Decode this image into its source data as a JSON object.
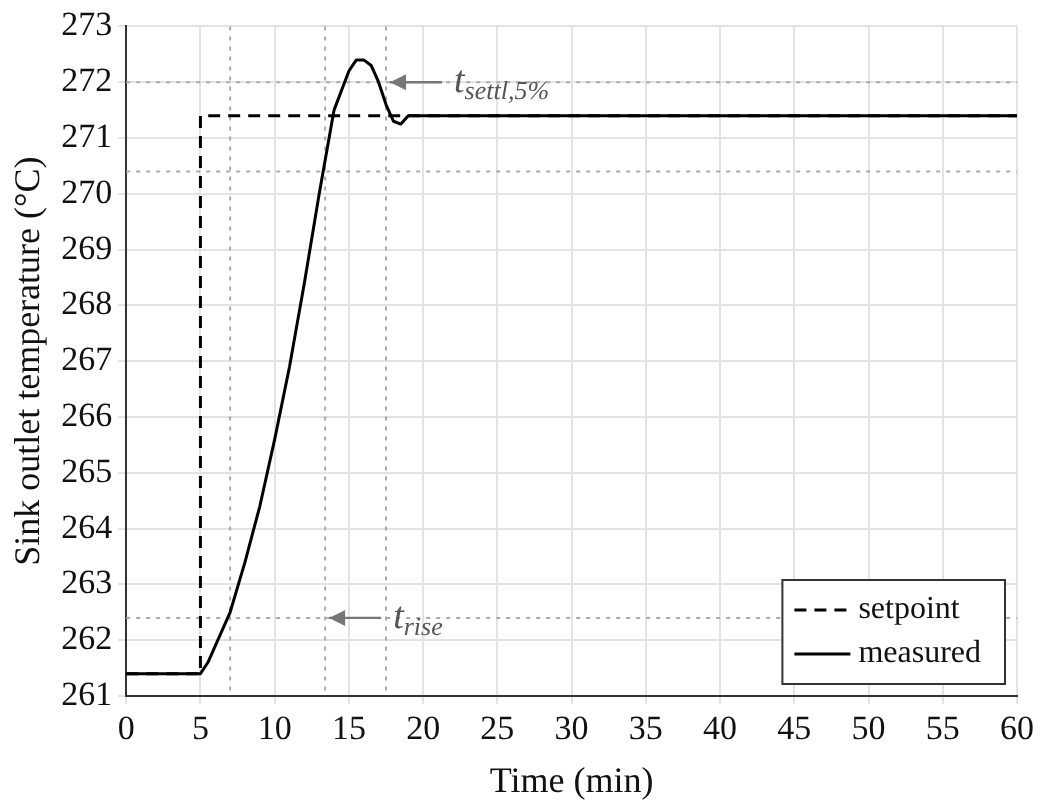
{
  "chart_data": {
    "type": "line",
    "xlabel": "Time (min)",
    "ylabel": "Sink outlet temperature (°C)",
    "xlim": [
      0,
      60
    ],
    "xticks": [
      0,
      5,
      10,
      15,
      20,
      25,
      30,
      35,
      40,
      45,
      50,
      55,
      60
    ],
    "ylim": [
      261,
      273
    ],
    "yticks": [
      261,
      262,
      263,
      264,
      265,
      266,
      267,
      268,
      269,
      270,
      271,
      272,
      273
    ],
    "grid": true,
    "legend": "bottom right",
    "marker": "none",
    "series": [
      {
        "name": "setpoint",
        "color": "#000000",
        "line_style": "dashed",
        "x": [
          0,
          5,
          5,
          60
        ],
        "values": [
          261.4,
          261.4,
          271.4,
          271.4
        ]
      },
      {
        "name": "measured",
        "color": "#000000",
        "line_style": "solid",
        "x": [
          0,
          5,
          5.5,
          6,
          7,
          8,
          9,
          10,
          11,
          12,
          13,
          14,
          15,
          15.5,
          16,
          16.5,
          17,
          17.5,
          18,
          18.5,
          19,
          20,
          30,
          40,
          50,
          60
        ],
        "values": [
          261.4,
          261.4,
          261.6,
          261.9,
          262.5,
          263.4,
          264.4,
          265.6,
          266.9,
          268.4,
          270,
          271.5,
          272.2,
          272.4,
          272.4,
          272.3,
          272,
          271.6,
          271.3,
          271.25,
          271.4,
          271.4,
          271.4,
          271.4,
          271.4,
          271.4
        ]
      }
    ],
    "ref_lines": [
      {
        "axis": "x",
        "value": 7,
        "color": "#aaaaaa",
        "line_style": "dotted"
      },
      {
        "axis": "x",
        "value": 13.4,
        "color": "#aaaaaa",
        "line_style": "dotted"
      },
      {
        "axis": "x",
        "value": 17.5,
        "color": "#aaaaaa",
        "line_style": "dotted"
      },
      {
        "axis": "y",
        "value": 262.4,
        "color": "#aaaaaa",
        "line_style": "dotted"
      },
      {
        "axis": "y",
        "value": 270.4,
        "color": "#aaaaaa",
        "line_style": "dotted"
      },
      {
        "axis": "y",
        "value": 272,
        "color": "#aaaaaa",
        "line_style": "dotted"
      }
    ],
    "annotations": [
      {
        "text": "t$_{rise}$",
        "x": 13.4,
        "y": 262.4
      },
      {
        "text": "t$_{settl,5%}$",
        "x": 17.5,
        "y": 272
      }
    ]
  }
}
